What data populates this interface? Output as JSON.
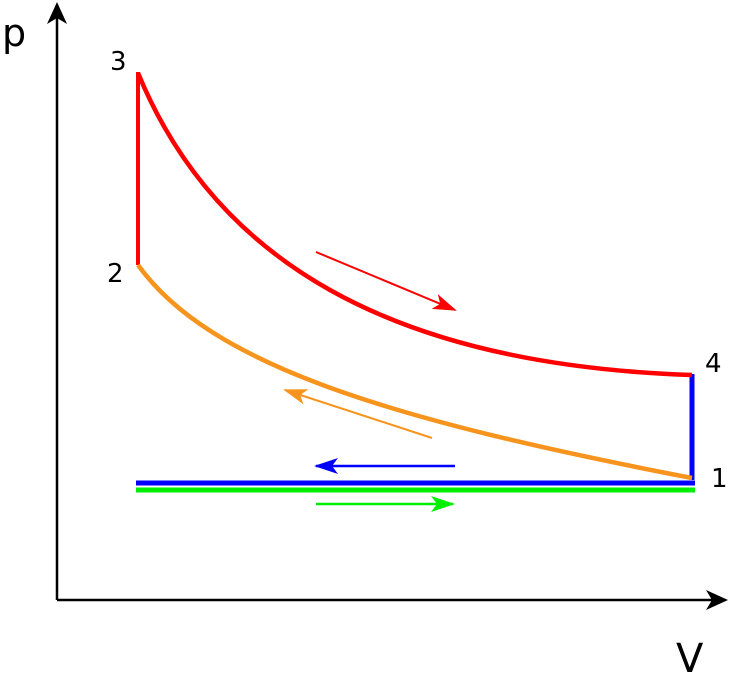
{
  "axes": {
    "y_label": "p",
    "x_label": "V"
  },
  "points": {
    "p1": "1",
    "p2": "2",
    "p3": "3",
    "p4": "4"
  },
  "colors": {
    "expansion": "#ff0000",
    "compression": "#f7941d",
    "exhaust": "#0000ff",
    "intake": "#00ee00",
    "axes": "#000000"
  }
}
